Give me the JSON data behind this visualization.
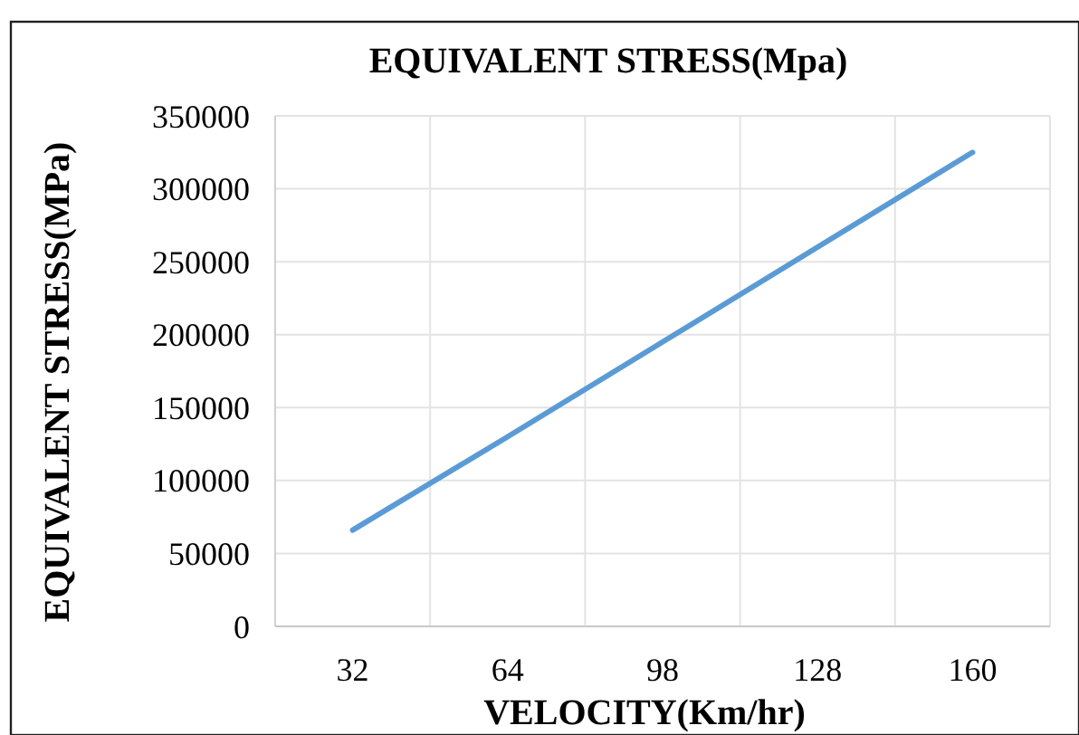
{
  "chart_data": {
    "type": "line",
    "title": "EQUIVALENT STRESS(Mpa)",
    "xlabel": "VELOCITY(Km/hr)",
    "ylabel": "EQUIVALENT STRESS(MPa)",
    "categories": [
      "32",
      "64",
      "98",
      "128",
      "160"
    ],
    "series": [
      {
        "color": "#5b9bd5",
        "values": [
          66000,
          130000,
          195000,
          260000,
          325000
        ]
      }
    ],
    "ylim": [
      0,
      350000
    ],
    "yticks": [
      0,
      50000,
      100000,
      150000,
      200000,
      250000,
      300000,
      350000
    ],
    "grid": true,
    "marker": "none",
    "line_style": "solid"
  }
}
